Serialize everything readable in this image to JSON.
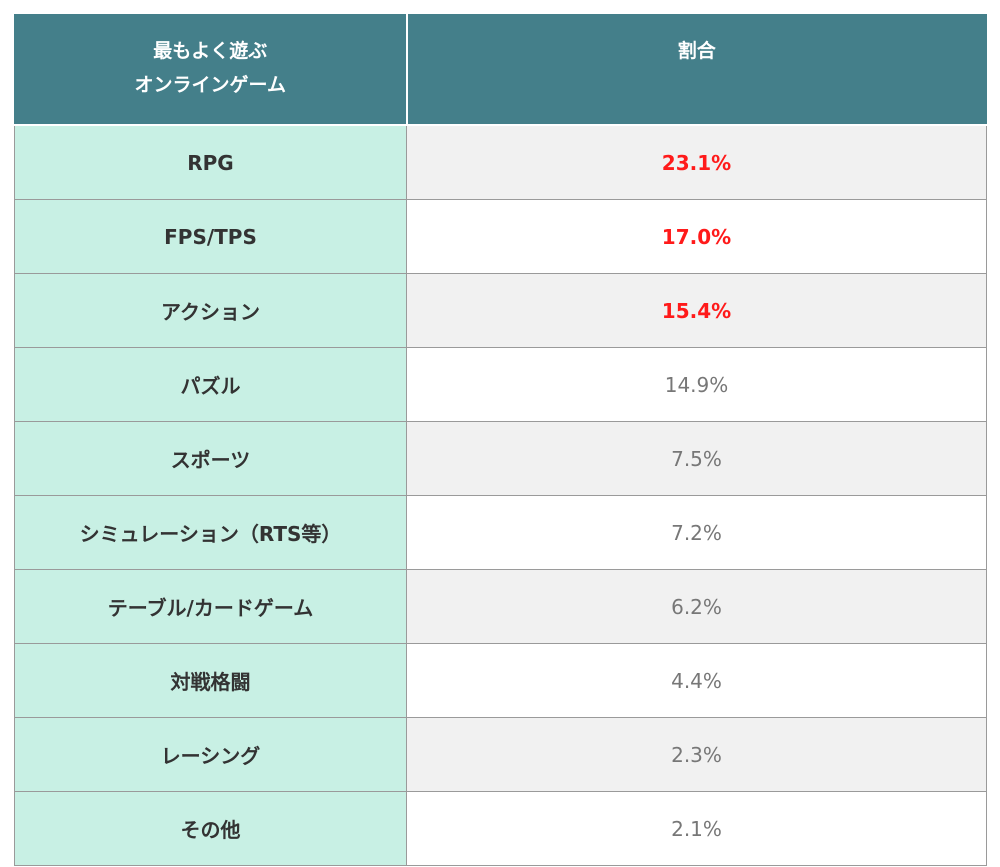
{
  "table": {
    "header": {
      "genre_line1": "最もよく遊ぶ",
      "genre_line2": "オンラインゲーム",
      "share": "割合"
    },
    "highlight_color": "#ff1a1a",
    "header_color": "#447f8a",
    "genre_cell_color": "#c8f0e4",
    "rows": [
      {
        "genre": "RPG",
        "share": "23.1%"
      },
      {
        "genre": "FPS/TPS",
        "share": "17.0%"
      },
      {
        "genre": "アクション",
        "share": "15.4%"
      },
      {
        "genre": "パズル",
        "share": "14.9%"
      },
      {
        "genre": "スポーツ",
        "share": "7.5%"
      },
      {
        "genre": "シミュレーション（RTS等）",
        "share": "7.2%"
      },
      {
        "genre": "テーブル/カードゲーム",
        "share": "6.2%"
      },
      {
        "genre": "対戦格闘",
        "share": "4.4%"
      },
      {
        "genre": "レーシング",
        "share": "2.3%"
      },
      {
        "genre": "その他",
        "share": "2.1%"
      }
    ]
  }
}
